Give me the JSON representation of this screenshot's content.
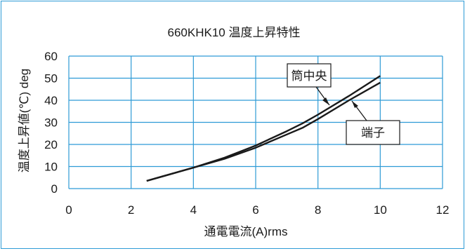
{
  "chart_data": {
    "type": "line",
    "title": "660KHK10 温度上昇特性",
    "xlabel": "通電電流(A)rms",
    "ylabel": "温度上昇値(℃) deg",
    "xlim": [
      0,
      12
    ],
    "ylim": [
      0,
      60
    ],
    "x_ticks": [
      "0",
      "2",
      "4",
      "6",
      "8",
      "10",
      "12"
    ],
    "y_ticks": [
      "0",
      "10",
      "20",
      "30",
      "40",
      "50",
      "60"
    ],
    "grid": true,
    "series": [
      {
        "name": "筒中央",
        "x": [
          2.5,
          3,
          4,
          5,
          6,
          7,
          7.5,
          8,
          9,
          10
        ],
        "y": [
          3.5,
          5.5,
          9.5,
          14,
          19.5,
          26,
          29.5,
          33.5,
          42,
          51
        ]
      },
      {
        "name": "端子",
        "x": [
          2.5,
          3,
          4,
          5,
          6,
          7,
          7.5,
          8,
          9,
          10
        ],
        "y": [
          3.5,
          5.5,
          9.5,
          13.5,
          18.5,
          24.5,
          27.5,
          31.5,
          40,
          48
        ]
      }
    ],
    "colors": {
      "line": "#1a1a1a",
      "grid": "#2e9bd6",
      "frame": "#2e9bd6"
    }
  }
}
